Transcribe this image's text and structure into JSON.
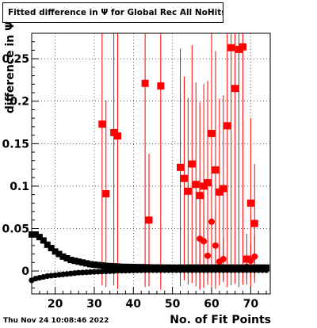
{
  "title": "Fitted difference in  Ψ  for Global Rec All NoHits",
  "timestamp": "Thu Nov 24 10:08:46 2022",
  "chart_data": {
    "type": "scatter",
    "title": "Fitted difference in  Ψ  for Global Rec All NoHits",
    "xlabel": "No. of Fit Points",
    "ylabel": "difference in  Ψ",
    "xlim": [
      14,
      75
    ],
    "ylim": [
      -0.027,
      0.28
    ],
    "x_ticks": [
      20,
      30,
      40,
      50,
      60,
      70
    ],
    "y_ticks": [
      0,
      0.05,
      0.1,
      0.15,
      0.2,
      0.25
    ],
    "y_tick_labels": [
      "0",
      "0.05",
      "0.1",
      "0.15",
      "0.2",
      "0.25"
    ],
    "grid": true,
    "colors": {
      "mean_series": "#ff0000",
      "sigma_series": "#ff0000",
      "black_series": "#000000"
    },
    "series": [
      {
        "marker": "square",
        "color": "#ff0000",
        "points": [
          {
            "x": 32,
            "y": 0.173,
            "err": 0.19
          },
          {
            "x": 33,
            "y": 0.091,
            "err": 0.11
          },
          {
            "x": 35,
            "y": 0.163,
            "err": 0.18
          },
          {
            "x": 36,
            "y": 0.159,
            "err": 0.18
          },
          {
            "x": 43,
            "y": 0.221,
            "err": 0.24
          },
          {
            "x": 44,
            "y": 0.06,
            "err": 0.078
          },
          {
            "x": 47,
            "y": 0.218,
            "err": 0.24
          },
          {
            "x": 52,
            "y": 0.122,
            "err": 0.14
          },
          {
            "x": 53,
            "y": 0.109,
            "err": 0.12
          },
          {
            "x": 54,
            "y": 0.094,
            "err": 0.11
          },
          {
            "x": 55,
            "y": 0.126,
            "err": 0.14
          },
          {
            "x": 56,
            "y": 0.102,
            "err": 0.12
          },
          {
            "x": 57,
            "y": 0.089,
            "err": 0.11
          },
          {
            "x": 58,
            "y": 0.1,
            "err": 0.12
          },
          {
            "x": 59,
            "y": 0.104,
            "err": 0.12
          },
          {
            "x": 60,
            "y": 0.162,
            "err": 0.18
          },
          {
            "x": 61,
            "y": 0.119,
            "err": 0.14
          },
          {
            "x": 62,
            "y": 0.093,
            "err": 0.11
          },
          {
            "x": 63,
            "y": 0.097,
            "err": 0.11
          },
          {
            "x": 64,
            "y": 0.171,
            "err": 0.19
          },
          {
            "x": 65,
            "y": 0.263,
            "err": 0.28
          },
          {
            "x": 66,
            "y": 0.215,
            "err": 0.23
          },
          {
            "x": 67,
            "y": 0.261,
            "err": 0.28
          },
          {
            "x": 68,
            "y": 0.264,
            "err": 0.28
          },
          {
            "x": 69,
            "y": 0.014,
            "err": 0.03
          },
          {
            "x": 70,
            "y": 0.08,
            "err": 0.1
          },
          {
            "x": 71,
            "y": 0.056,
            "err": 0.07
          }
        ]
      },
      {
        "marker": "circle",
        "color": "#ff0000",
        "points": [
          {
            "x": 57,
            "y": 0.038,
            "err": 0.06
          },
          {
            "x": 58,
            "y": 0.035,
            "err": 0.055
          },
          {
            "x": 59,
            "y": 0.018,
            "err": 0.03
          },
          {
            "x": 60,
            "y": 0.058,
            "err": 0.075
          },
          {
            "x": 61,
            "y": 0.03,
            "err": 0.045
          },
          {
            "x": 62,
            "y": 0.011,
            "err": 0.02
          },
          {
            "x": 63,
            "y": 0.014,
            "err": 0.025
          },
          {
            "x": 69,
            "y": 0.005,
            "err": 0.015
          },
          {
            "x": 70,
            "y": 0.012,
            "err": 0.02
          },
          {
            "x": 71,
            "y": 0.017,
            "err": 0.025
          }
        ]
      },
      {
        "marker": "square",
        "color": "#000000",
        "points": [
          {
            "x": 14,
            "y": 0.043
          },
          {
            "x": 15,
            "y": 0.043
          },
          {
            "x": 16,
            "y": 0.04
          },
          {
            "x": 17,
            "y": 0.036
          },
          {
            "x": 18,
            "y": 0.031
          },
          {
            "x": 19,
            "y": 0.027
          },
          {
            "x": 20,
            "y": 0.023
          },
          {
            "x": 21,
            "y": 0.02
          },
          {
            "x": 22,
            "y": 0.017
          },
          {
            "x": 23,
            "y": 0.015
          },
          {
            "x": 24,
            "y": 0.013
          },
          {
            "x": 25,
            "y": 0.012
          },
          {
            "x": 26,
            "y": 0.011
          },
          {
            "x": 27,
            "y": 0.01
          },
          {
            "x": 28,
            "y": 0.009
          },
          {
            "x": 29,
            "y": 0.008
          },
          {
            "x": 30,
            "y": 0.0075
          },
          {
            "x": 31,
            "y": 0.007
          },
          {
            "x": 32,
            "y": 0.0065
          },
          {
            "x": 33,
            "y": 0.006
          },
          {
            "x": 34,
            "y": 0.0058
          },
          {
            "x": 35,
            "y": 0.0055
          },
          {
            "x": 36,
            "y": 0.0053
          },
          {
            "x": 37,
            "y": 0.005
          },
          {
            "x": 38,
            "y": 0.0049
          },
          {
            "x": 39,
            "y": 0.0048
          },
          {
            "x": 40,
            "y": 0.0047
          },
          {
            "x": 41,
            "y": 0.0046
          },
          {
            "x": 42,
            "y": 0.0045
          },
          {
            "x": 43,
            "y": 0.0044
          },
          {
            "x": 44,
            "y": 0.0043
          },
          {
            "x": 45,
            "y": 0.0042
          },
          {
            "x": 46,
            "y": 0.0042
          },
          {
            "x": 47,
            "y": 0.0041
          },
          {
            "x": 48,
            "y": 0.004
          },
          {
            "x": 49,
            "y": 0.004
          },
          {
            "x": 50,
            "y": 0.004
          },
          {
            "x": 51,
            "y": 0.004
          },
          {
            "x": 52,
            "y": 0.004
          },
          {
            "x": 53,
            "y": 0.004
          },
          {
            "x": 54,
            "y": 0.004
          },
          {
            "x": 55,
            "y": 0.004
          },
          {
            "x": 56,
            "y": 0.004
          },
          {
            "x": 57,
            "y": 0.004
          },
          {
            "x": 58,
            "y": 0.004
          },
          {
            "x": 59,
            "y": 0.004
          },
          {
            "x": 60,
            "y": 0.004
          },
          {
            "x": 61,
            "y": 0.004
          },
          {
            "x": 62,
            "y": 0.004
          },
          {
            "x": 63,
            "y": 0.004
          },
          {
            "x": 64,
            "y": 0.004
          },
          {
            "x": 65,
            "y": 0.004
          },
          {
            "x": 66,
            "y": 0.004
          },
          {
            "x": 67,
            "y": 0.004
          },
          {
            "x": 68,
            "y": 0.004
          },
          {
            "x": 69,
            "y": 0.004
          },
          {
            "x": 70,
            "y": 0.004
          },
          {
            "x": 71,
            "y": 0.004
          },
          {
            "x": 72,
            "y": 0.004
          },
          {
            "x": 73,
            "y": 0.004
          },
          {
            "x": 74,
            "y": 0.004
          }
        ]
      },
      {
        "marker": "circle",
        "color": "#000000",
        "points": [
          {
            "x": 14,
            "y": -0.011
          },
          {
            "x": 15,
            "y": -0.009
          },
          {
            "x": 16,
            "y": -0.008
          },
          {
            "x": 17,
            "y": -0.007
          },
          {
            "x": 18,
            "y": -0.006
          },
          {
            "x": 19,
            "y": -0.0055
          },
          {
            "x": 20,
            "y": -0.005
          },
          {
            "x": 21,
            "y": -0.0045
          },
          {
            "x": 22,
            "y": -0.004
          },
          {
            "x": 23,
            "y": -0.0035
          },
          {
            "x": 24,
            "y": -0.003
          },
          {
            "x": 25,
            "y": -0.0025
          },
          {
            "x": 26,
            "y": -0.002
          },
          {
            "x": 27,
            "y": -0.0018
          },
          {
            "x": 28,
            "y": -0.0015
          },
          {
            "x": 29,
            "y": -0.0012
          },
          {
            "x": 30,
            "y": -0.001
          },
          {
            "x": 31,
            "y": -0.0008
          },
          {
            "x": 32,
            "y": -0.0006
          },
          {
            "x": 33,
            "y": -0.0004
          },
          {
            "x": 34,
            "y": -0.0002
          },
          {
            "x": 35,
            "y": 0
          },
          {
            "x": 36,
            "y": 0.0002
          },
          {
            "x": 37,
            "y": 0.0004
          },
          {
            "x": 38,
            "y": 0.0005
          },
          {
            "x": 39,
            "y": 0.0006
          },
          {
            "x": 40,
            "y": 0.0007
          },
          {
            "x": 41,
            "y": 0.0008
          },
          {
            "x": 42,
            "y": 0.0009
          },
          {
            "x": 43,
            "y": 0.001
          },
          {
            "x": 44,
            "y": 0.001
          },
          {
            "x": 45,
            "y": 0.001
          },
          {
            "x": 46,
            "y": 0.001
          },
          {
            "x": 47,
            "y": 0.001
          },
          {
            "x": 48,
            "y": 0.001
          },
          {
            "x": 49,
            "y": 0.001
          },
          {
            "x": 50,
            "y": 0.001
          },
          {
            "x": 51,
            "y": 0.001
          },
          {
            "x": 52,
            "y": 0.001
          },
          {
            "x": 53,
            "y": 0.001
          },
          {
            "x": 54,
            "y": 0.001
          },
          {
            "x": 55,
            "y": 0.001
          },
          {
            "x": 56,
            "y": 0.001
          },
          {
            "x": 57,
            "y": 0.001
          },
          {
            "x": 58,
            "y": 0.001
          },
          {
            "x": 59,
            "y": 0.001
          },
          {
            "x": 60,
            "y": 0.001
          },
          {
            "x": 61,
            "y": 0.001
          },
          {
            "x": 62,
            "y": 0.001
          },
          {
            "x": 63,
            "y": 0.001
          },
          {
            "x": 64,
            "y": 0.001
          },
          {
            "x": 65,
            "y": 0.001
          },
          {
            "x": 66,
            "y": 0.001
          },
          {
            "x": 67,
            "y": 0.001
          },
          {
            "x": 68,
            "y": 0.001
          },
          {
            "x": 69,
            "y": 0.001
          },
          {
            "x": 70,
            "y": 0.001
          },
          {
            "x": 71,
            "y": 0.001
          },
          {
            "x": 72,
            "y": 0.001
          },
          {
            "x": 73,
            "y": 0.001
          },
          {
            "x": 74,
            "y": 0.001
          }
        ]
      }
    ]
  }
}
